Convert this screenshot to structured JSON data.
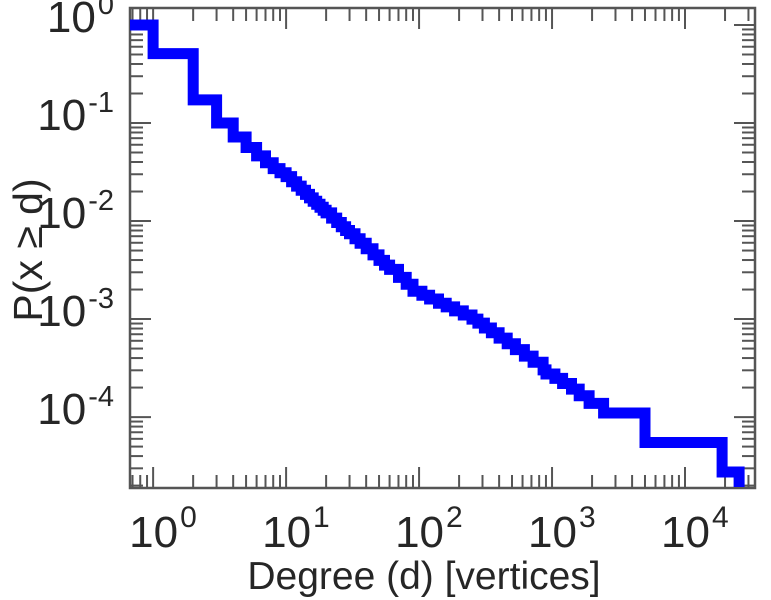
{
  "chart_data": {
    "type": "line",
    "subtype": "step-ccdf",
    "title": "",
    "xlabel": "Degree (d) [vertices]",
    "ylabel": "P(x ≥ d)",
    "x_scale": "log",
    "y_scale": "log",
    "x_range": [
      0.67,
      33600
    ],
    "y_range": [
      1.89e-05,
      1.49
    ],
    "grid": false,
    "legend": "none",
    "tick_base": "10",
    "x_tick_exponents": [
      "0",
      "1",
      "2",
      "3",
      "4"
    ],
    "y_tick_exponents": [
      "0",
      "-1",
      "-2",
      "-3",
      "-4"
    ],
    "line_color": "#0000ff",
    "line_width": 11,
    "axis_color": "#555555",
    "text_color": "#262626",
    "max_degree": 25500,
    "points": [
      [
        0.67,
        1.0
      ],
      [
        1,
        0.51
      ],
      [
        2,
        0.172
      ],
      [
        3,
        0.1
      ],
      [
        4,
        0.072
      ],
      [
        5,
        0.0562
      ],
      [
        6,
        0.0462
      ],
      [
        7,
        0.0393
      ],
      [
        8,
        0.0343
      ],
      [
        9,
        0.0311
      ],
      [
        10,
        0.0284
      ],
      [
        11,
        0.0252
      ],
      [
        12,
        0.0227
      ],
      [
        13,
        0.0206
      ],
      [
        14,
        0.0187
      ],
      [
        15,
        0.0172
      ],
      [
        16,
        0.0159
      ],
      [
        17,
        0.0148
      ],
      [
        18,
        0.0138
      ],
      [
        19,
        0.0129
      ],
      [
        20,
        0.0121
      ],
      [
        22,
        0.0107
      ],
      [
        24,
        0.00965
      ],
      [
        26,
        0.00875
      ],
      [
        28,
        0.008
      ],
      [
        30,
        0.0074
      ],
      [
        33,
        0.00659
      ],
      [
        36,
        0.00592
      ],
      [
        40,
        0.00521
      ],
      [
        45,
        0.00451
      ],
      [
        50,
        0.00397
      ],
      [
        55,
        0.00355
      ],
      [
        60,
        0.00321
      ],
      [
        70,
        0.00266
      ],
      [
        80,
        0.00226
      ],
      [
        90,
        0.00192
      ],
      [
        105,
        0.00175
      ],
      [
        120,
        0.0016
      ],
      [
        140,
        0.00145
      ],
      [
        160,
        0.00133
      ],
      [
        185,
        0.00121
      ],
      [
        215,
        0.0011
      ],
      [
        250,
        0.001
      ],
      [
        277,
        0.00091
      ],
      [
        310,
        0.00081
      ],
      [
        350,
        0.000725
      ],
      [
        400,
        0.000639
      ],
      [
        460,
        0.000559
      ],
      [
        530,
        0.000488
      ],
      [
        620,
        0.000419
      ],
      [
        720,
        0.000363
      ],
      [
        856,
        0.000303
      ],
      [
        900,
        0.000275
      ],
      [
        1050,
        0.000248
      ],
      [
        1200,
        0.00022
      ],
      [
        1400,
        0.000193
      ],
      [
        1600,
        0.000165
      ],
      [
        1900,
        0.000138
      ],
      [
        2440,
        0.00011
      ],
      [
        5000,
        5.5e-05
      ],
      [
        19000,
        2.75e-05
      ]
    ]
  }
}
